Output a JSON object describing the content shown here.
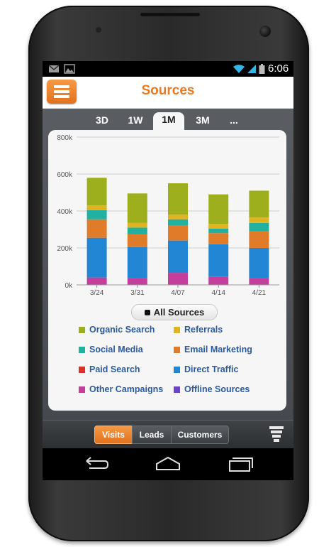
{
  "status_bar": {
    "time": "6:06",
    "icons": [
      "gmail-icon",
      "gallery-icon",
      "wifi-icon",
      "signal-icon",
      "battery-icon"
    ]
  },
  "app_bar": {
    "title": "Sources",
    "menu_icon": "hamburger-menu-icon",
    "accent": "#ee7a1f"
  },
  "time_tabs": [
    {
      "label": "3D",
      "active": false
    },
    {
      "label": "1W",
      "active": false
    },
    {
      "label": "1M",
      "active": true
    },
    {
      "label": "3M",
      "active": false
    },
    {
      "label": "...",
      "active": false
    }
  ],
  "chart_data": {
    "type": "bar",
    "stacked": true,
    "categories": [
      "3/24",
      "3/31",
      "4/07",
      "4/14",
      "4/21"
    ],
    "y_ticks": [
      "0k",
      "200k",
      "400k",
      "600k",
      "800k"
    ],
    "ylim": [
      0,
      800000
    ],
    "grid": true,
    "series": [
      {
        "name": "Other Campaigns",
        "color": "#c43f9b",
        "values": [
          40000,
          35000,
          65000,
          45000,
          35000
        ]
      },
      {
        "name": "Direct Traffic",
        "color": "#2386d5",
        "values": [
          215000,
          170000,
          175000,
          175000,
          165000
        ]
      },
      {
        "name": "Email Marketing",
        "color": "#e07b2a",
        "values": [
          100000,
          70000,
          80000,
          60000,
          90000
        ]
      },
      {
        "name": "Social Media",
        "color": "#22b0a0",
        "values": [
          50000,
          35000,
          35000,
          25000,
          45000
        ]
      },
      {
        "name": "Referrals",
        "color": "#e0b321",
        "values": [
          25000,
          25000,
          25000,
          25000,
          30000
        ]
      },
      {
        "name": "Organic Search",
        "color": "#9eaf1d",
        "values": [
          150000,
          160000,
          170000,
          160000,
          145000
        ]
      }
    ]
  },
  "all_sources_label": "All Sources",
  "legend": [
    {
      "label": "Organic Search",
      "color": "#9eaf1d"
    },
    {
      "label": "Referrals",
      "color": "#e0b321"
    },
    {
      "label": "Social Media",
      "color": "#22b0a0"
    },
    {
      "label": "Email Marketing",
      "color": "#e07b2a"
    },
    {
      "label": "Paid Search",
      "color": "#d9312a"
    },
    {
      "label": "Direct Traffic",
      "color": "#2386d5"
    },
    {
      "label": "Other Campaigns",
      "color": "#c43f9b"
    },
    {
      "label": "Offline Sources",
      "color": "#6a44c9"
    }
  ],
  "bottom_tabs": [
    {
      "label": "Visits",
      "active": true
    },
    {
      "label": "Leads",
      "active": false
    },
    {
      "label": "Customers",
      "active": false
    }
  ],
  "filter_icon": "funnel-icon",
  "nav_icons": [
    "back-icon",
    "home-icon",
    "recent-apps-icon"
  ]
}
